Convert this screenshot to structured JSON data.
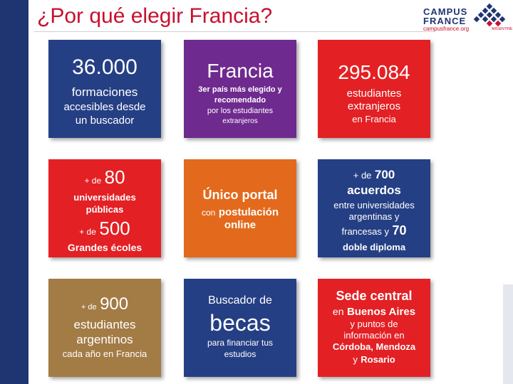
{
  "title": "¿Por qué elegir Francia?",
  "logo": {
    "line1": "CAMPUS",
    "line2": "FRANCE",
    "url": "campusfrance.org",
    "country": "ARGENTINE"
  },
  "colors": {
    "title": "#c8102e",
    "blue": "#253f84",
    "purple": "#6e2a8f",
    "red": "#e32024",
    "orange": "#e36a1c",
    "brown": "#a37b45",
    "sidebar": "#1f3572"
  },
  "cards": {
    "formaciones": {
      "number": "36.000",
      "label": "formaciones",
      "sub": "accesibles desde",
      "sub2": "un buscador"
    },
    "francia": {
      "heading": "Francia",
      "line1": "3er país más elegido y",
      "line2": "recomendado",
      "line3": "por los estudiantes",
      "line4": "extranjeros"
    },
    "estudiantes": {
      "number": "295.084",
      "line1": "estudiantes",
      "line2": "extranjeros",
      "line3": "en Francia"
    },
    "universidades": {
      "prefix1": "+ de",
      "number1": "80",
      "line1": "universidades",
      "line2": "públicas",
      "prefix2": "+ de",
      "number2": "500",
      "line3": "Grandes écoles"
    },
    "portal": {
      "heading": "Único portal",
      "prefix": "con",
      "line1": "postulación",
      "line2": "online"
    },
    "acuerdos": {
      "prefix": "+ de",
      "number": "700",
      "line1": "acuerdos",
      "line2": "entre universidades",
      "line3": "argentinas y",
      "line4": "francesas y",
      "number2": "70",
      "line5": "doble diploma"
    },
    "argentinos": {
      "prefix": "+ de",
      "number": "900",
      "line1": "estudiantes",
      "line2": "argentinos",
      "line3": "cada año en Francia"
    },
    "becas": {
      "line1": "Buscador de",
      "big": "becas",
      "line2": "para financiar tus",
      "line3": "estudios"
    },
    "sede": {
      "heading": "Sede central",
      "line1a": "en",
      "line1b": "Buenos Aires",
      "line2": "y puntos de",
      "line3": "información en",
      "line4": "Córdoba, Mendoza",
      "line5a": "y",
      "line5b": "Rosario"
    }
  }
}
